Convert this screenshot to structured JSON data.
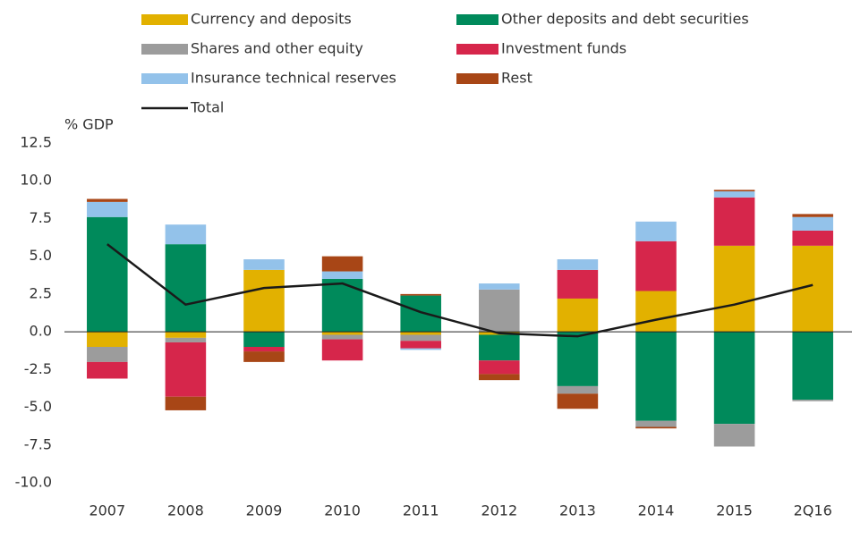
{
  "chart_data": {
    "type": "bar",
    "stacked": true,
    "y_label": "% GDP",
    "categories": [
      "2007",
      "2008",
      "2009",
      "2010",
      "2011",
      "2012",
      "2013",
      "2014",
      "2015",
      "2Q16"
    ],
    "series": [
      {
        "name": "Currency and deposits",
        "color": "#e2b100",
        "values": [
          -1.0,
          -0.4,
          4.1,
          -0.2,
          -0.2,
          -0.2,
          2.2,
          2.7,
          5.7,
          5.7
        ]
      },
      {
        "name": "Other deposits and debt securities",
        "color": "#008a5b",
        "values": [
          7.6,
          5.8,
          -1.0,
          3.5,
          2.4,
          -1.7,
          -3.6,
          -5.9,
          -6.1,
          -4.5
        ]
      },
      {
        "name": "Shares and other equity",
        "color": "#9c9c9c",
        "values": [
          -1.0,
          -0.3,
          0,
          -0.3,
          -0.4,
          2.8,
          -0.5,
          -0.4,
          -1.5,
          -0.1
        ]
      },
      {
        "name": "Investment funds",
        "color": "#d6264b",
        "values": [
          -1.1,
          -3.6,
          -0.3,
          -1.4,
          -0.5,
          -0.9,
          1.9,
          3.3,
          3.2,
          1.0
        ]
      },
      {
        "name": "Insurance technical reserves",
        "color": "#93c2ea",
        "values": [
          1.0,
          1.3,
          0.7,
          0.5,
          -0.1,
          0.4,
          0.7,
          1.3,
          0.4,
          0.9
        ]
      },
      {
        "name": "Rest",
        "color": "#a84616",
        "values": [
          0.2,
          -0.9,
          -0.7,
          1.0,
          0.1,
          -0.4,
          -1.0,
          -0.1,
          0.1,
          0.2
        ]
      }
    ],
    "total": {
      "name": "Total",
      "color": "#1a1a1a",
      "values": [
        5.8,
        1.8,
        2.9,
        3.2,
        1.3,
        -0.1,
        -0.3,
        0.8,
        1.8,
        3.1
      ]
    },
    "ylim": [
      -10,
      12.5
    ],
    "yticks": [
      12.5,
      {
        "value": 10,
        "label": "10.0"
      },
      7.5,
      {
        "value": 5,
        "label": "5.0"
      },
      2.5,
      {
        "value": 0,
        "label": "0.0"
      },
      -2.5,
      {
        "value": -5,
        "label": "-5.0"
      },
      -7.5,
      {
        "value": -10,
        "label": "-10.0"
      }
    ],
    "grid": false
  }
}
